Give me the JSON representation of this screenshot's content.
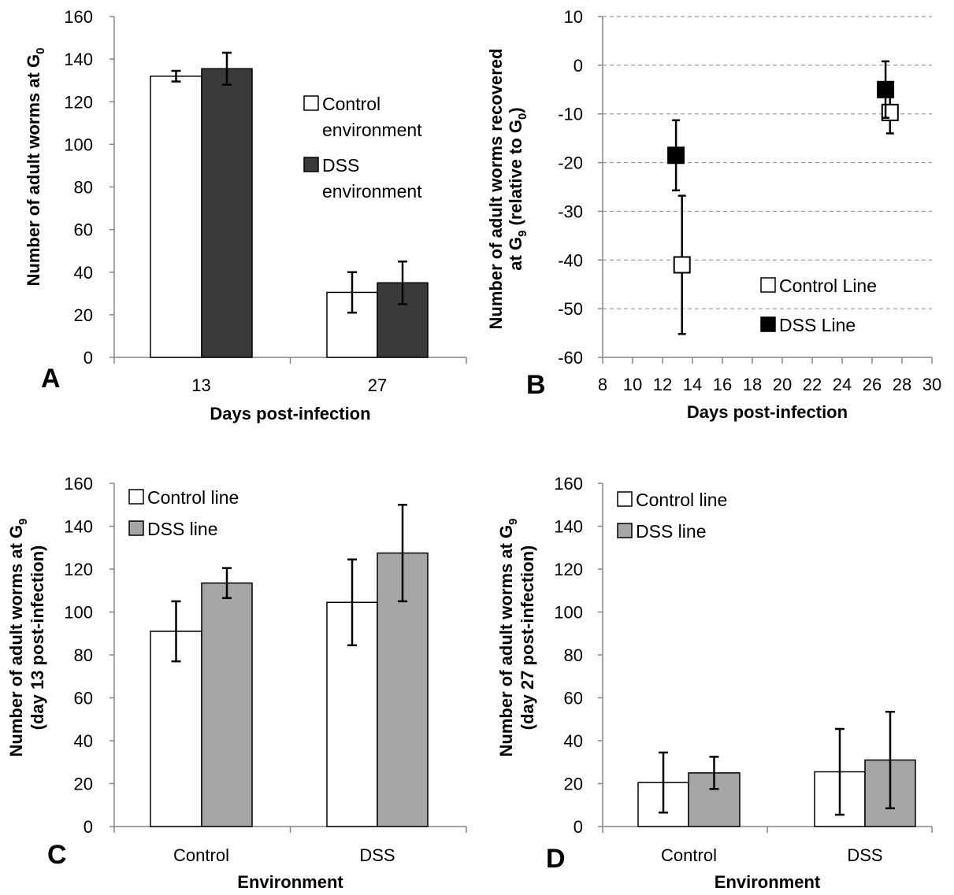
{
  "colors": {
    "white": "#ffffff",
    "dark": "#3a3a3a",
    "black": "#000000",
    "gray": "#a6a6a6",
    "axis": "#868686"
  },
  "chart_data": [
    {
      "id": "A",
      "panel_label": "A",
      "type": "bar",
      "categories": [
        "13",
        "27"
      ],
      "series": [
        {
          "name": "Control environment",
          "name_lines": [
            "Control",
            "environment"
          ],
          "color": "#ffffff",
          "values": [
            132,
            30.5
          ],
          "errors": [
            2.5,
            9.5
          ]
        },
        {
          "name": "DSS environment",
          "name_lines": [
            "DSS",
            "environment"
          ],
          "color": "#3a3a3a",
          "values": [
            135.5,
            35
          ],
          "errors": [
            7.5,
            10
          ]
        }
      ],
      "xlabel": "Days post-infection",
      "ylabel": {
        "main": "Number of adult worms at G",
        "sub": "0",
        "tail": ""
      },
      "ylim": [
        0,
        160
      ],
      "ytick_step": 20,
      "legend": "right"
    },
    {
      "id": "B",
      "panel_label": "B",
      "type": "scatter",
      "series": [
        {
          "name": "Control Line",
          "marker": "open-square",
          "color": "#ffffff",
          "points": [
            {
              "x": 13.3,
              "y": -41,
              "err": 14.2
            },
            {
              "x": 27.2,
              "y": -9.7,
              "err": 4.3
            }
          ]
        },
        {
          "name": "DSS Line",
          "marker": "filled-square",
          "color": "#000000",
          "points": [
            {
              "x": 12.9,
              "y": -18.5,
              "err": 7.2
            },
            {
              "x": 26.9,
              "y": -5,
              "err": 5.8
            }
          ]
        }
      ],
      "xlabel": "Days post-infection",
      "ylabel": {
        "line1": "Number of adult worms recovered",
        "line2_pre": "at G",
        "line2_sub": "9",
        "line2_mid": " (relative to G",
        "line2_sub2": "0",
        "line2_post": ")"
      },
      "xlim": [
        8,
        30
      ],
      "xtick_step": 2,
      "ylim": [
        -60,
        10
      ],
      "ytick_step": 10,
      "grid": "horizontal dashed",
      "legend": "bottom-right"
    },
    {
      "id": "C",
      "panel_label": "C",
      "type": "bar",
      "categories": [
        "Control",
        "DSS"
      ],
      "series": [
        {
          "name": "Control line",
          "color": "#ffffff",
          "values": [
            91,
            104.5
          ],
          "errors": [
            14,
            20
          ]
        },
        {
          "name": "DSS line",
          "color": "#a6a6a6",
          "values": [
            113.5,
            127.5
          ],
          "errors": [
            7,
            22.5
          ]
        }
      ],
      "xlabel": "Environment",
      "ylabel": {
        "line1_pre": "Number of adult worms at G",
        "line1_sub": "9",
        "line2": "(day 13 post-infection)"
      },
      "ylim": [
        0,
        160
      ],
      "ytick_step": 20,
      "legend": "top-left"
    },
    {
      "id": "D",
      "panel_label": "D",
      "type": "bar",
      "categories": [
        "Control",
        "DSS"
      ],
      "series": [
        {
          "name": "Control line",
          "color": "#ffffff",
          "values": [
            20.5,
            25.5
          ],
          "errors": [
            14,
            20
          ]
        },
        {
          "name": "DSS line",
          "color": "#a6a6a6",
          "values": [
            25,
            31
          ],
          "errors": [
            7.5,
            22.5
          ]
        }
      ],
      "xlabel": "Environment",
      "ylabel": {
        "line1_pre": "Number of adult worms at G",
        "line1_sub": "9",
        "line2": "(day 27 post-infection)"
      },
      "ylim": [
        0,
        160
      ],
      "ytick_step": 20,
      "legend": "top-left"
    }
  ]
}
